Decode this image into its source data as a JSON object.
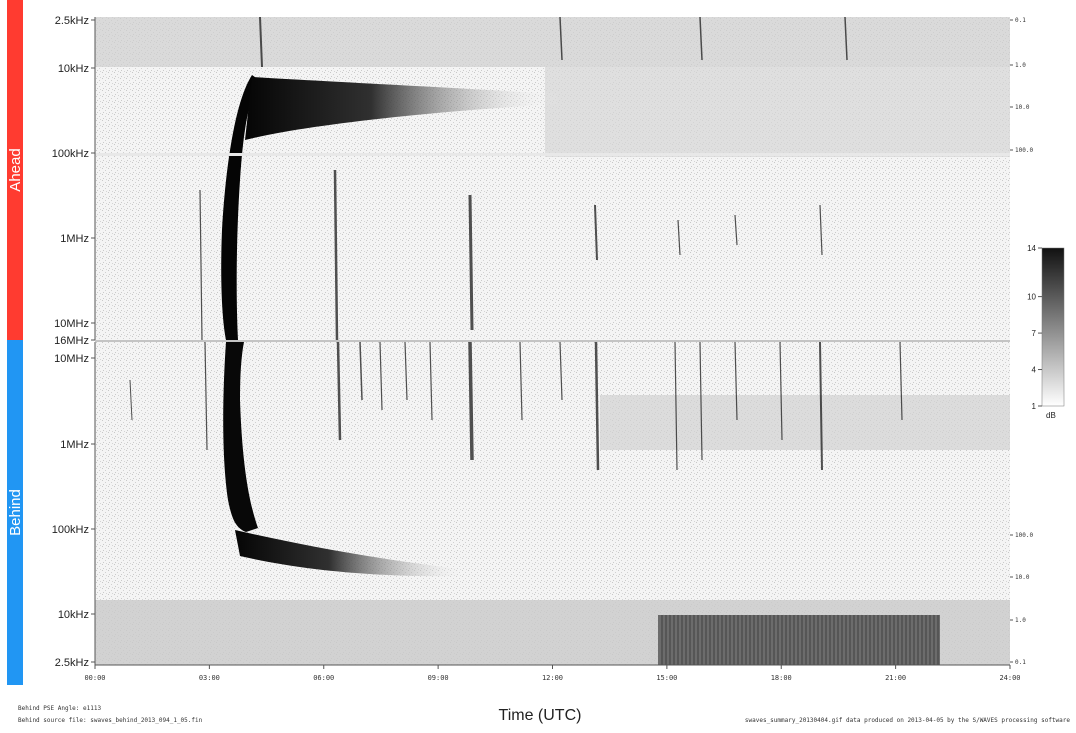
{
  "chart_data": {
    "type": "heatmap",
    "xlabel": "Time (UTC)",
    "x_ticks": [
      "00:00",
      "03:00",
      "06:00",
      "09:00",
      "12:00",
      "15:00",
      "18:00",
      "21:00",
      "24:00"
    ],
    "xlim": [
      0,
      24
    ],
    "panels": [
      {
        "name": "Ahead",
        "color": "#ff3b30",
        "y_ticks": [
          "2.5kHz",
          "10kHz",
          "100kHz",
          "1MHz",
          "10MHz",
          "16MHz"
        ],
        "right_ticks": [
          "0.1",
          "1.0",
          "10.0",
          "100.0"
        ]
      },
      {
        "name": "Behind",
        "color": "#2196f3",
        "y_ticks": [
          "10MHz",
          "1MHz",
          "100kHz",
          "10kHz",
          "2.5kHz"
        ],
        "right_ticks": [
          "100.0",
          "10.0",
          "1.0",
          "0.1"
        ]
      }
    ],
    "colorbar": {
      "ticks": [
        "1",
        "4",
        "7",
        "10",
        "14"
      ],
      "unit": "dB",
      "range": [
        1,
        14
      ]
    },
    "footer": {
      "left_line1": "Behind PSE Angle: e1113",
      "left_line2": "Behind source file: swaves_behind_2013_094_1_05.fin",
      "right": "swaves_summary_20130404.gif data produced on 2013-04-05 by the S/WAVES processing software"
    }
  }
}
